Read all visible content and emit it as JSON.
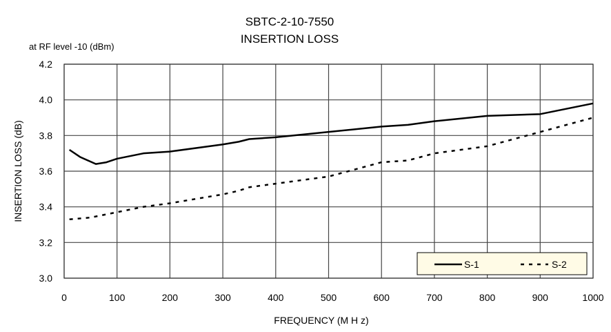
{
  "chart_data": {
    "type": "line",
    "title": "SBTC-2-10-7550",
    "subtitle": "INSERTION LOSS",
    "annotation": "at RF level -10 (dBm)",
    "xlabel": "FREQUENCY (M H z)",
    "ylabel": "INSERTION LOSS (dB)",
    "xlim": [
      0,
      1000
    ],
    "ylim": [
      3.0,
      4.2
    ],
    "xticks": [
      0,
      100,
      200,
      300,
      400,
      500,
      600,
      700,
      800,
      900,
      1000
    ],
    "yticks": [
      "3.0",
      "3.2",
      "3.4",
      "3.6",
      "3.8",
      "4.0",
      "4.2"
    ],
    "grid": true,
    "legend_position": "bottom-right",
    "series": [
      {
        "name": "S-1",
        "style": "solid",
        "x": [
          10,
          30,
          60,
          80,
          100,
          150,
          200,
          300,
          330,
          350,
          400,
          500,
          600,
          650,
          700,
          800,
          900,
          1000
        ],
        "y": [
          3.72,
          3.68,
          3.64,
          3.65,
          3.67,
          3.7,
          3.71,
          3.75,
          3.765,
          3.78,
          3.79,
          3.82,
          3.85,
          3.86,
          3.88,
          3.91,
          3.92,
          3.98
        ]
      },
      {
        "name": "S-2",
        "style": "dashed",
        "x": [
          10,
          50,
          100,
          150,
          200,
          300,
          330,
          350,
          400,
          500,
          600,
          650,
          700,
          800,
          900,
          1000
        ],
        "y": [
          3.33,
          3.34,
          3.37,
          3.4,
          3.42,
          3.47,
          3.49,
          3.51,
          3.53,
          3.57,
          3.65,
          3.66,
          3.7,
          3.74,
          3.82,
          3.9
        ]
      }
    ]
  }
}
